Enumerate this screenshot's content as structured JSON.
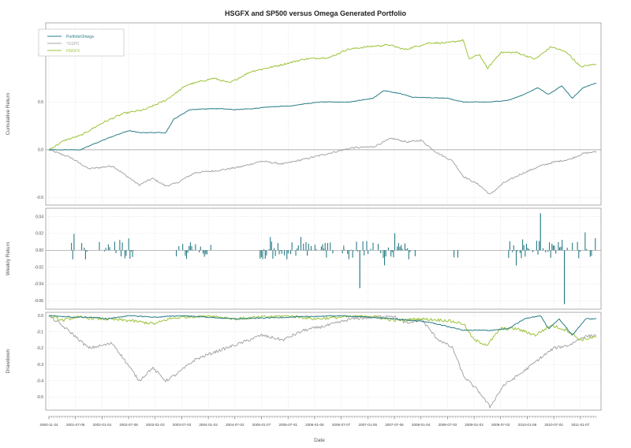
{
  "chart_data": {
    "title": "HSGFX and SP500 versus Omega Generated Portfolio",
    "xlabel": "Date",
    "x_tick_labels": [
      "2000-11-24",
      "2001-07-06",
      "2002-01-04",
      "2002-07-08",
      "2003-01-03",
      "2003-07-03",
      "2004-01-02",
      "2004-07-02",
      "2005-01-07",
      "2005-07-01",
      "2006-01-06",
      "2006-07-07",
      "2007-01-05",
      "2007-07-06",
      "2008-01-04",
      "2008-07-03",
      "2009-01-02",
      "2009-07-02",
      "2010-01-08",
      "2010-07-02",
      "2011-01-07"
    ],
    "x_range": [
      0,
      20.6
    ],
    "series_colors": {
      "PortfolioOmega": "#2a7c87",
      "GSPC": "#a6a6a6",
      "HSGFX": "#9cc43a"
    },
    "panels": [
      {
        "type": "line",
        "ylabel": "Cumulative Return",
        "ylim": [
          -0.58,
          1.33
        ],
        "yticks": [
          -0.5,
          0.0,
          0.5,
          1.0
        ],
        "ytick_labels": [
          "-0.5",
          "0.0",
          "0.5",
          "1.0"
        ],
        "zero_line": true,
        "legend": {
          "placement": "top-left",
          "entries": [
            "PortfolioOmega",
            "^GSPC",
            "HSGFX"
          ]
        },
        "series": [
          {
            "name": "PortfolioOmega",
            "points": [
              [
                0,
                0
              ],
              [
                1.2,
                0
              ],
              [
                1.6,
                0.05
              ],
              [
                2.3,
                0.13
              ],
              [
                3,
                0.2
              ],
              [
                3.4,
                0.18
              ],
              [
                4.4,
                0.18
              ],
              [
                4.7,
                0.32
              ],
              [
                5.3,
                0.42
              ],
              [
                6,
                0.43
              ],
              [
                6.5,
                0.43
              ],
              [
                7,
                0.42
              ],
              [
                7.6,
                0.43
              ],
              [
                8.3,
                0.45
              ],
              [
                9.1,
                0.46
              ],
              [
                9.6,
                0.48
              ],
              [
                10.2,
                0.5
              ],
              [
                11.3,
                0.5
              ],
              [
                12.2,
                0.54
              ],
              [
                12.6,
                0.62
              ],
              [
                13.2,
                0.59
              ],
              [
                13.7,
                0.55
              ],
              [
                15,
                0.54
              ],
              [
                15.6,
                0.5
              ],
              [
                16.6,
                0.5
              ],
              [
                17.3,
                0.52
              ],
              [
                17.8,
                0.57
              ],
              [
                18.4,
                0.65
              ],
              [
                18.8,
                0.58
              ],
              [
                19.3,
                0.67
              ],
              [
                19.7,
                0.54
              ],
              [
                20.1,
                0.65
              ],
              [
                20.6,
                0.7
              ]
            ]
          },
          {
            "name": "^GSPC",
            "points": [
              [
                0,
                0
              ],
              [
                0.8,
                -0.08
              ],
              [
                1.5,
                -0.2
              ],
              [
                2.4,
                -0.17
              ],
              [
                3.4,
                -0.37
              ],
              [
                3.9,
                -0.3
              ],
              [
                4.4,
                -0.38
              ],
              [
                4.8,
                -0.35
              ],
              [
                5.5,
                -0.24
              ],
              [
                6.3,
                -0.22
              ],
              [
                7.2,
                -0.18
              ],
              [
                8,
                -0.12
              ],
              [
                8.8,
                -0.15
              ],
              [
                9.6,
                -0.1
              ],
              [
                10.5,
                -0.04
              ],
              [
                11.4,
                0.02
              ],
              [
                12.2,
                0.03
              ],
              [
                12.9,
                0.12
              ],
              [
                13.5,
                0.08
              ],
              [
                14,
                0.1
              ],
              [
                14.6,
                -0.03
              ],
              [
                15.2,
                -0.12
              ],
              [
                15.6,
                -0.28
              ],
              [
                16.2,
                -0.37
              ],
              [
                16.6,
                -0.47
              ],
              [
                17.1,
                -0.35
              ],
              [
                17.8,
                -0.25
              ],
              [
                18.5,
                -0.17
              ],
              [
                19,
                -0.13
              ],
              [
                19.6,
                -0.1
              ],
              [
                20.1,
                -0.04
              ],
              [
                20.6,
                -0.02
              ]
            ]
          },
          {
            "name": "HSGFX",
            "points": [
              [
                0,
                0
              ],
              [
                0.6,
                0.1
              ],
              [
                1.2,
                0.15
              ],
              [
                2,
                0.28
              ],
              [
                2.8,
                0.38
              ],
              [
                3.6,
                0.42
              ],
              [
                4.4,
                0.52
              ],
              [
                5.2,
                0.68
              ],
              [
                6.2,
                0.75
              ],
              [
                6.8,
                0.7
              ],
              [
                7.6,
                0.82
              ],
              [
                8.6,
                0.88
              ],
              [
                9.6,
                0.95
              ],
              [
                10.6,
                0.97
              ],
              [
                11.2,
                1.05
              ],
              [
                12,
                1.08
              ],
              [
                12.8,
                1.1
              ],
              [
                13.4,
                1.05
              ],
              [
                14.3,
                1.12
              ],
              [
                15,
                1.12
              ],
              [
                15.6,
                1.15
              ],
              [
                15.8,
                0.95
              ],
              [
                16.2,
                1.0
              ],
              [
                16.5,
                0.85
              ],
              [
                17,
                1.02
              ],
              [
                17.6,
                1.02
              ],
              [
                18.3,
                0.95
              ],
              [
                18.9,
                1.08
              ],
              [
                19.5,
                1.02
              ],
              [
                20,
                0.87
              ],
              [
                20.6,
                0.9
              ]
            ]
          }
        ]
      },
      {
        "type": "bar",
        "ylabel": "Weekly Return",
        "ylim": [
          -0.07,
          0.05
        ],
        "yticks": [
          0.04,
          0.02,
          0.0,
          -0.02,
          -0.04,
          -0.06
        ],
        "ytick_labels": [
          "0.04",
          "0.02",
          "0.00",
          "-0.02",
          "-0.04",
          "-0.06"
        ],
        "series": [
          {
            "name": "PortfolioOmega",
            "color": "#2a7c87"
          }
        ],
        "active_intervals": [
          [
            0.85,
            1.45
          ],
          [
            1.9,
            3.25
          ],
          [
            4.7,
            6.2
          ],
          [
            7.9,
            10.7
          ],
          [
            11.0,
            13.8
          ],
          [
            15.1,
            15.6
          ],
          [
            17.3,
            20.6
          ]
        ],
        "extremes": [
          {
            "x": 11.7,
            "value": -0.045
          },
          {
            "x": 18.5,
            "value": 0.044
          },
          {
            "x": 19.4,
            "value": -0.064
          }
        ]
      },
      {
        "type": "line",
        "ylabel": "Drawdown",
        "ylim": [
          -0.58,
          0.02
        ],
        "yticks": [
          0.0,
          -0.1,
          -0.2,
          -0.3,
          -0.4,
          -0.5
        ],
        "ytick_labels": [
          "0.0",
          "-0.1",
          "-0.2",
          "-0.3",
          "-0.4",
          "-0.5"
        ],
        "series": [
          {
            "name": "PortfolioOmega",
            "points": [
              [
                0,
                0
              ],
              [
                1,
                -0.01
              ],
              [
                1.6,
                -0.01
              ],
              [
                2.2,
                -0.02
              ],
              [
                3,
                0
              ],
              [
                4,
                -0.01
              ],
              [
                5,
                0
              ],
              [
                7,
                -0.02
              ],
              [
                9,
                -0.01
              ],
              [
                11,
                0
              ],
              [
                13,
                -0.02
              ],
              [
                14.3,
                -0.04
              ],
              [
                15.6,
                -0.09
              ],
              [
                16.6,
                -0.09
              ],
              [
                17.3,
                -0.08
              ],
              [
                17.9,
                -0.02
              ],
              [
                18.5,
                0
              ],
              [
                18.8,
                -0.08
              ],
              [
                19.2,
                -0.02
              ],
              [
                19.7,
                -0.12
              ],
              [
                20.2,
                -0.02
              ],
              [
                20.6,
                -0.02
              ]
            ]
          },
          {
            "name": "^GSPC",
            "points": [
              [
                0,
                0
              ],
              [
                0.8,
                -0.1
              ],
              [
                1.5,
                -0.2
              ],
              [
                2.4,
                -0.17
              ],
              [
                3.4,
                -0.4
              ],
              [
                3.9,
                -0.32
              ],
              [
                4.4,
                -0.4
              ],
              [
                4.8,
                -0.36
              ],
              [
                5.5,
                -0.27
              ],
              [
                6.3,
                -0.22
              ],
              [
                7.2,
                -0.17
              ],
              [
                8,
                -0.12
              ],
              [
                8.8,
                -0.15
              ],
              [
                9.6,
                -0.09
              ],
              [
                10.5,
                -0.06
              ],
              [
                11.4,
                -0.02
              ],
              [
                12.2,
                -0.01
              ],
              [
                12.9,
                0
              ],
              [
                13.5,
                -0.05
              ],
              [
                14,
                -0.02
              ],
              [
                14.6,
                -0.14
              ],
              [
                15.2,
                -0.2
              ],
              [
                15.6,
                -0.37
              ],
              [
                16.2,
                -0.47
              ],
              [
                16.6,
                -0.56
              ],
              [
                17.1,
                -0.43
              ],
              [
                17.8,
                -0.35
              ],
              [
                18.5,
                -0.26
              ],
              [
                19,
                -0.2
              ],
              [
                19.6,
                -0.18
              ],
              [
                20.1,
                -0.13
              ],
              [
                20.6,
                -0.12
              ]
            ]
          },
          {
            "name": "HSGFX",
            "points": [
              [
                0,
                0
              ],
              [
                0.5,
                -0.03
              ],
              [
                1,
                -0.01
              ],
              [
                2,
                -0.02
              ],
              [
                3,
                -0.03
              ],
              [
                4,
                -0.05
              ],
              [
                4.5,
                -0.02
              ],
              [
                5,
                -0.01
              ],
              [
                6,
                0
              ],
              [
                7,
                -0.02
              ],
              [
                8,
                -0.01
              ],
              [
                9,
                0
              ],
              [
                10,
                -0.02
              ],
              [
                11,
                -0.01
              ],
              [
                12,
                0
              ],
              [
                13,
                -0.03
              ],
              [
                14,
                -0.02
              ],
              [
                15,
                -0.03
              ],
              [
                15.6,
                -0.05
              ],
              [
                16,
                -0.15
              ],
              [
                16.5,
                -0.18
              ],
              [
                17,
                -0.08
              ],
              [
                17.6,
                -0.08
              ],
              [
                18.3,
                -0.12
              ],
              [
                18.9,
                -0.06
              ],
              [
                19.5,
                -0.09
              ],
              [
                20,
                -0.15
              ],
              [
                20.6,
                -0.13
              ]
            ]
          }
        ]
      }
    ]
  }
}
